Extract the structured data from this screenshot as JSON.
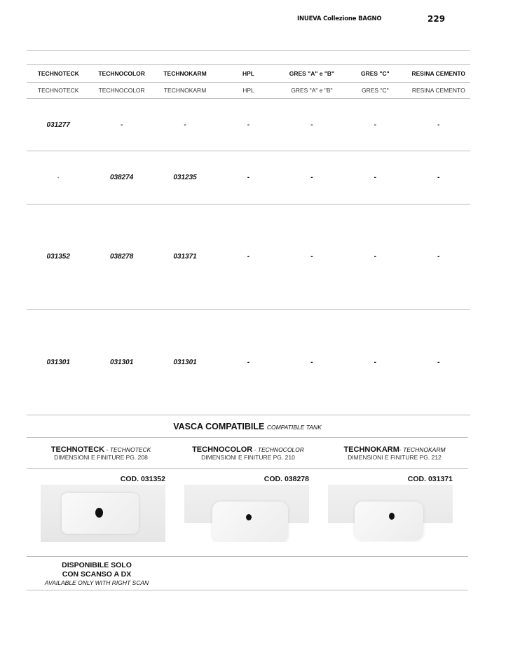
{
  "header": {
    "title": "INUEVA Collezione BAGNO",
    "page": "229"
  },
  "table": {
    "columns_bold": [
      "TECHNOTECK",
      "TECHNOCOLOR",
      "TECHNOKARM",
      "HPL",
      "GRES \"A\" e \"B\"",
      "GRES \"C\"",
      "RESINA CEMENTO"
    ],
    "columns_sub": [
      "TECHNOTECK",
      "TECHNOCOLOR",
      "TECHNOKARM",
      "HPL",
      "GRES \"A\" e \"B\"",
      "GRES \"C\"",
      "RESINA CEMENTO"
    ],
    "rows": [
      [
        "031277",
        "-",
        "-",
        "-",
        "-",
        "-",
        "-"
      ],
      [
        "-",
        "038274",
        "031235",
        "-",
        "-",
        "-",
        "-"
      ],
      [
        "031352",
        "038278",
        "031371",
        "-",
        "-",
        "-",
        "-"
      ],
      [
        "031301",
        "031301",
        "031301",
        "-",
        "-",
        "-",
        "-"
      ]
    ]
  },
  "compatible": {
    "title": "VASCA COMPATIBILE",
    "title_en": "COMPATIBLE TANK",
    "items": [
      {
        "name": "TECHNOTECK",
        "sep": " - ",
        "name_en": "TECHNOTECK",
        "dims": "DIMENSIONI E FINITURE PG. 208",
        "code": "COD. 031352"
      },
      {
        "name": "TECHNOCOLOR",
        "sep": " - ",
        "name_en": "TECHNOCOLOR",
        "dims": "DIMENSIONI E FINITURE PG. 210",
        "code": "COD. 038278"
      },
      {
        "name": "TECHNOKARM",
        "sep": "- ",
        "name_en": "TECHNOKARM",
        "dims": "DIMENSIONI E FINITURE PG. 212",
        "code": "COD. 031371"
      }
    ],
    "note_line1": "DISPONIBILE SOLO",
    "note_line2": "CON SCANSO A DX",
    "note_en": "AVAILABLE ONLY WITH RIGHT SCAN"
  }
}
